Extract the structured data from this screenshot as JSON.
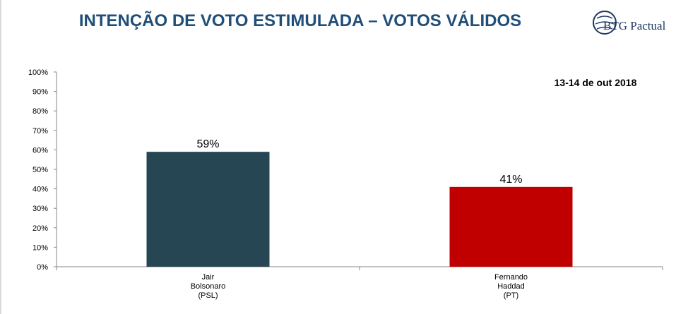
{
  "header": {
    "title": "INTENÇÃO DE VOTO ESTIMULADA – VOTOS VÁLIDOS",
    "logo_text": "BTG Pactual"
  },
  "colors": {
    "title": "#1f4e79",
    "bar_bolsonaro": "#264653",
    "bar_haddad": "#c00000",
    "logo": "#1f3864"
  },
  "chart_data": {
    "type": "bar",
    "annotation": "13-14 de out 2018",
    "categories": [
      [
        "Jair",
        "Bolsonaro",
        "(PSL)"
      ],
      [
        "Fernando",
        "Haddad",
        "(PT)"
      ]
    ],
    "values": [
      59,
      41
    ],
    "data_labels": [
      "59%",
      "41%"
    ],
    "bar_colors": [
      "#264653",
      "#c00000"
    ],
    "ylim": [
      0,
      100
    ],
    "yticks": [
      0,
      10,
      20,
      30,
      40,
      50,
      60,
      70,
      80,
      90,
      100
    ],
    "ytick_labels": [
      "0%",
      "10%",
      "20%",
      "30%",
      "40%",
      "50%",
      "60%",
      "70%",
      "80%",
      "90%",
      "100%"
    ],
    "grid": false,
    "legend": "none"
  }
}
